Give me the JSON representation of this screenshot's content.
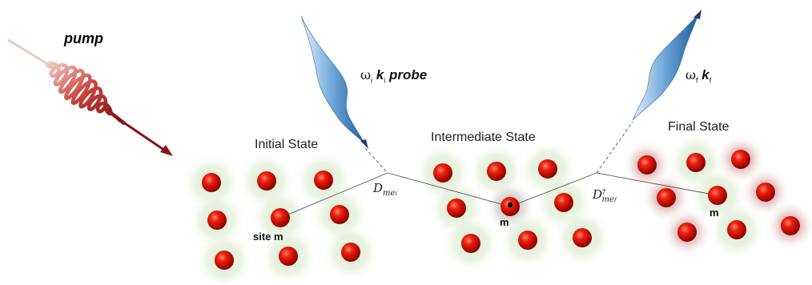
{
  "labels": {
    "pump": "pump",
    "probe_in": {
      "omega": "ω",
      "omega_sub": "i",
      "k": "k",
      "k_sub": "i",
      "word": "probe"
    },
    "probe_out": {
      "omega": "ω",
      "omega_sub": "f",
      "k": "k",
      "k_sub": "f"
    },
    "initial_state": "Initial State",
    "intermediate_state": "Intermediate State",
    "final_state": "Final State",
    "site_m": "site m",
    "m_intermediate": "m",
    "m_final": "m",
    "operator_in": {
      "symbol": "D",
      "sub": "me",
      "sub_italic": "i"
    },
    "operator_out": {
      "symbol": "D",
      "sup": "†",
      "sub": "me",
      "sub_italic": "f"
    }
  },
  "colors": {
    "atom": "#e8140a",
    "atom_dark": "#8c0000",
    "pump": "#b83030",
    "probe": "#3a7fc0"
  }
}
